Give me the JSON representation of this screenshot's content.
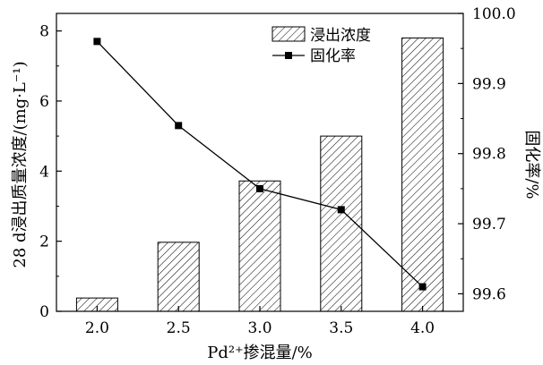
{
  "chart_data": {
    "type": "bar",
    "categories": [
      "2.0",
      "2.5",
      "3.0",
      "3.5",
      "4.0"
    ],
    "xlabel": "Pd²⁺掺混量/%",
    "series": [
      {
        "name": "浸出浓度",
        "type": "bar",
        "axis": "left",
        "values": [
          0.38,
          1.97,
          3.72,
          5.0,
          7.8
        ]
      },
      {
        "name": "固化率",
        "type": "line",
        "axis": "right",
        "marker": "square",
        "values": [
          99.96,
          99.84,
          99.75,
          99.72,
          99.61
        ]
      }
    ],
    "y_left": {
      "label": "28 d浸出质量浓度/(mg·L⁻¹)",
      "ylim": [
        0,
        8.5
      ],
      "ticks": [
        "0",
        "2",
        "4",
        "6",
        "8"
      ]
    },
    "y_right": {
      "label": "固化率/%",
      "ylim": [
        99.575,
        100.0
      ],
      "ticks": [
        "99.6",
        "99.7",
        "99.8",
        "99.9",
        "100.0"
      ]
    },
    "legend_position": "top-right",
    "grid": false
  }
}
